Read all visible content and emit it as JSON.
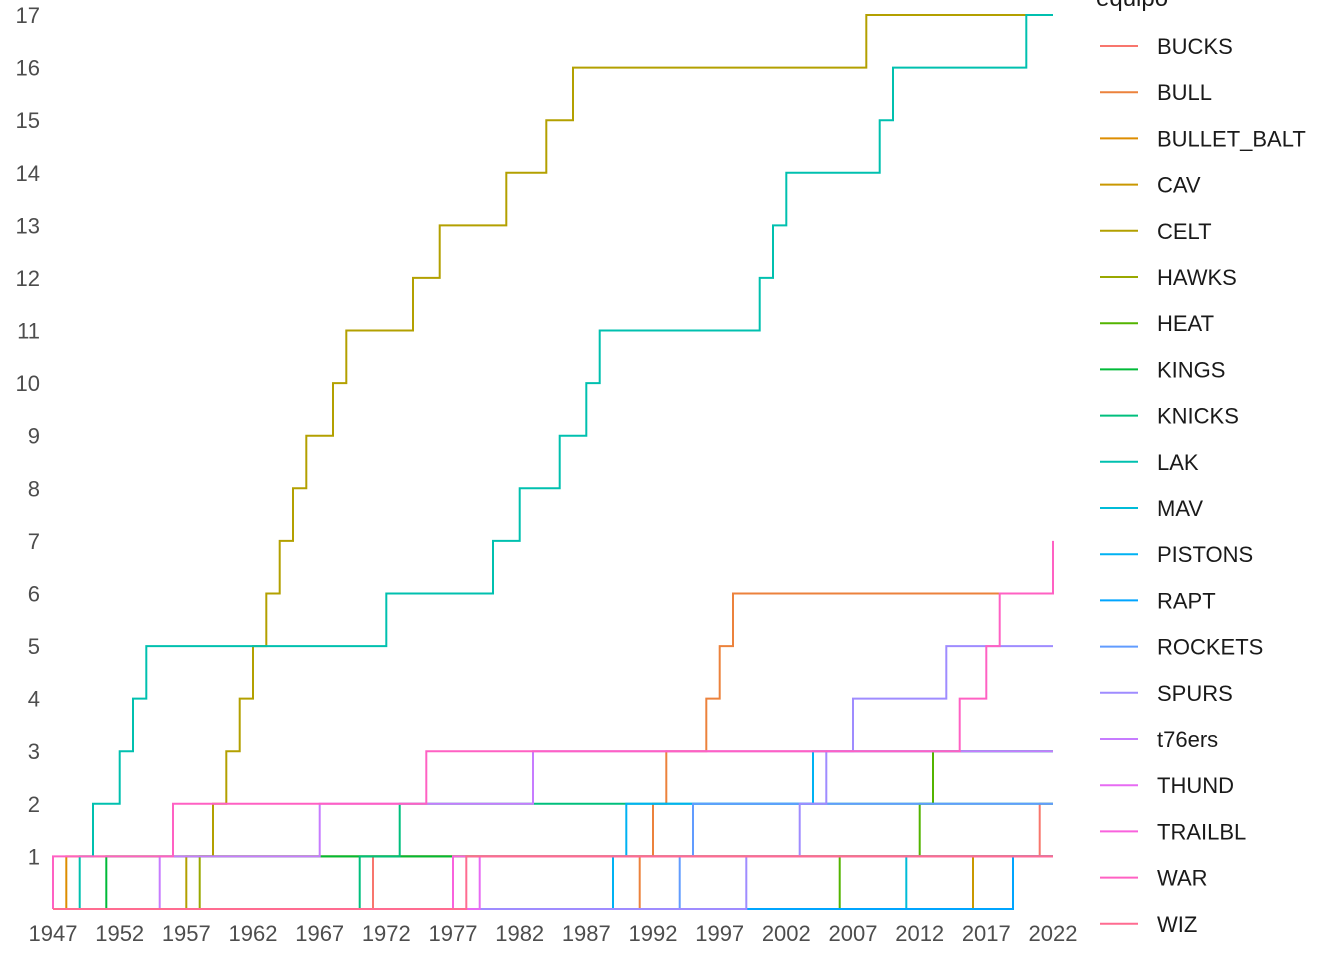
{
  "chart_data": {
    "type": "line",
    "step": true,
    "legend_title": "equipo",
    "legend_position": "right",
    "grid": false,
    "xlim": [
      1947,
      2022
    ],
    "ylim": [
      0,
      17
    ],
    "x_ticks": [
      1947,
      1952,
      1957,
      1962,
      1967,
      1972,
      1977,
      1982,
      1987,
      1992,
      1997,
      2002,
      2007,
      2012,
      2017,
      2022
    ],
    "y_ticks": [
      1,
      2,
      3,
      4,
      5,
      6,
      7,
      8,
      9,
      10,
      11,
      12,
      13,
      14,
      15,
      16,
      17
    ],
    "series": [
      {
        "name": "BUCKS",
        "color": "#F8766D",
        "x": [
          1947,
          1971,
          2021
        ],
        "y": [
          0,
          1,
          2
        ]
      },
      {
        "name": "BULL",
        "color": "#EC823C",
        "x": [
          1947,
          1991,
          1992,
          1993,
          1996,
          1997,
          1998,
          2022
        ],
        "y": [
          0,
          1,
          2,
          3,
          4,
          5,
          6,
          6
        ]
      },
      {
        "name": "BULLET_BALT",
        "color": "#DD8D00",
        "x": [
          1947,
          1948,
          2022
        ],
        "y": [
          0,
          1,
          1
        ]
      },
      {
        "name": "CAV",
        "color": "#C99800",
        "x": [
          1947,
          2016,
          2022
        ],
        "y": [
          0,
          1,
          1
        ]
      },
      {
        "name": "CELT",
        "color": "#B3A000",
        "x": [
          1947,
          1957,
          1959,
          1960,
          1961,
          1962,
          1963,
          1964,
          1965,
          1966,
          1968,
          1969,
          1974,
          1976,
          1981,
          1984,
          1986,
          2008,
          2022
        ],
        "y": [
          0,
          1,
          2,
          3,
          4,
          5,
          6,
          7,
          8,
          9,
          10,
          11,
          12,
          13,
          14,
          15,
          16,
          17,
          17
        ]
      },
      {
        "name": "HAWKS",
        "color": "#99A800",
        "x": [
          1947,
          1958,
          2022
        ],
        "y": [
          0,
          1,
          1
        ]
      },
      {
        "name": "HEAT",
        "color": "#53B400",
        "x": [
          1947,
          2006,
          2012,
          2013,
          2022
        ],
        "y": [
          0,
          1,
          2,
          3,
          3
        ]
      },
      {
        "name": "KINGS",
        "color": "#00BA38",
        "x": [
          1947,
          1951,
          2022
        ],
        "y": [
          0,
          1,
          1
        ]
      },
      {
        "name": "KNICKS",
        "color": "#00BF7D",
        "x": [
          1947,
          1970,
          1973,
          2022
        ],
        "y": [
          0,
          1,
          2,
          2
        ]
      },
      {
        "name": "LAK",
        "color": "#00C0AF",
        "x": [
          1947,
          1949,
          1950,
          1952,
          1953,
          1954,
          1972,
          1980,
          1982,
          1985,
          1987,
          1988,
          2000,
          2001,
          2002,
          2009,
          2010,
          2020,
          2022
        ],
        "y": [
          0,
          1,
          2,
          3,
          4,
          5,
          6,
          7,
          8,
          9,
          10,
          11,
          12,
          13,
          14,
          15,
          16,
          17,
          17
        ]
      },
      {
        "name": "MAV",
        "color": "#00BCD8",
        "x": [
          1947,
          2011,
          2022
        ],
        "y": [
          0,
          1,
          1
        ]
      },
      {
        "name": "PISTONS",
        "color": "#00B2F3",
        "x": [
          1947,
          1989,
          1990,
          2004,
          2022
        ],
        "y": [
          0,
          1,
          2,
          3,
          3
        ]
      },
      {
        "name": "RAPT",
        "color": "#00A5FF",
        "x": [
          1947,
          2019,
          2022
        ],
        "y": [
          0,
          1,
          1
        ]
      },
      {
        "name": "ROCKETS",
        "color": "#619CFF",
        "x": [
          1947,
          1994,
          1995,
          2022
        ],
        "y": [
          0,
          1,
          2,
          2
        ]
      },
      {
        "name": "SPURS",
        "color": "#9F8CFF",
        "x": [
          1947,
          1999,
          2003,
          2005,
          2007,
          2014,
          2022
        ],
        "y": [
          0,
          1,
          2,
          3,
          4,
          5,
          5
        ]
      },
      {
        "name": "t76ers",
        "color": "#C77CFF",
        "x": [
          1947,
          1955,
          1967,
          1983,
          2022
        ],
        "y": [
          0,
          1,
          2,
          3,
          3
        ]
      },
      {
        "name": "THUND",
        "color": "#E76BF3",
        "x": [
          1947,
          1979,
          2022
        ],
        "y": [
          0,
          1,
          1
        ]
      },
      {
        "name": "TRAILBL",
        "color": "#F962DD",
        "x": [
          1947,
          1977,
          2022
        ],
        "y": [
          0,
          1,
          1
        ]
      },
      {
        "name": "WAR",
        "color": "#FF61C3",
        "x": [
          1947,
          1947,
          1956,
          1975,
          2015,
          2017,
          2018,
          2022,
          2022
        ],
        "y": [
          0,
          1,
          2,
          3,
          4,
          5,
          6,
          6,
          7
        ]
      },
      {
        "name": "WIZ",
        "color": "#FF6C91",
        "x": [
          1947,
          1978,
          2022
        ],
        "y": [
          0,
          1,
          1
        ]
      }
    ]
  }
}
